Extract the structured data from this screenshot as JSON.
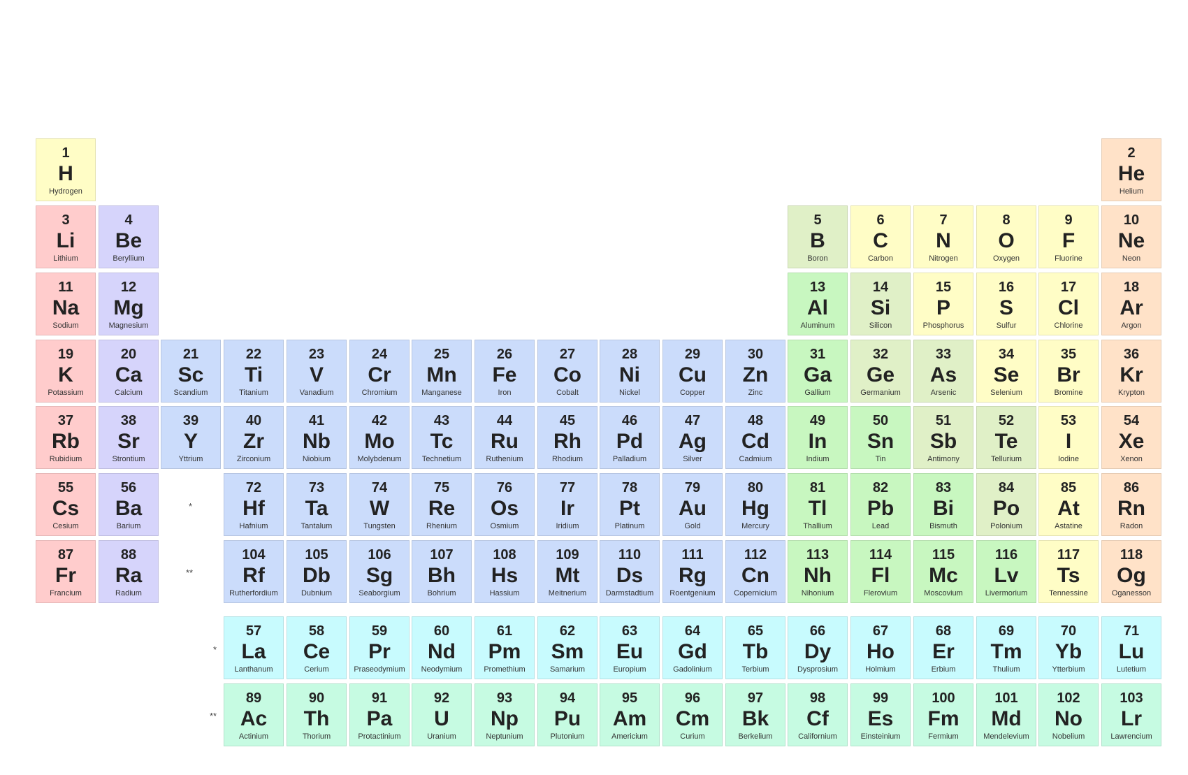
{
  "category_colors": {
    "alkali": "#ffcccc",
    "alkaline": "#d6d4fb",
    "transition": "#cbdcfb",
    "post": "#c8f7c0",
    "metalloid": "#e0f0c7",
    "nonmetal": "#fffdc6",
    "noble": "#ffe2c8",
    "lanthanide": "#c8fbfe",
    "actinide": "#c6fbe2"
  },
  "markers": {
    "lanthanide_slot": "*",
    "actinide_slot": "**",
    "lanthanide_row": "*",
    "actinide_row": "**"
  },
  "elements": [
    {
      "n": "1",
      "s": "H",
      "name": "Hydrogen",
      "row": 1,
      "col": 1,
      "cat": "nonmetal"
    },
    {
      "n": "2",
      "s": "He",
      "name": "Helium",
      "row": 1,
      "col": 18,
      "cat": "noble"
    },
    {
      "n": "3",
      "s": "Li",
      "name": "Lithium",
      "row": 2,
      "col": 1,
      "cat": "alkali"
    },
    {
      "n": "4",
      "s": "Be",
      "name": "Beryllium",
      "row": 2,
      "col": 2,
      "cat": "alkaline"
    },
    {
      "n": "5",
      "s": "B",
      "name": "Boron",
      "row": 2,
      "col": 13,
      "cat": "metalloid"
    },
    {
      "n": "6",
      "s": "C",
      "name": "Carbon",
      "row": 2,
      "col": 14,
      "cat": "nonmetal"
    },
    {
      "n": "7",
      "s": "N",
      "name": "Nitrogen",
      "row": 2,
      "col": 15,
      "cat": "nonmetal"
    },
    {
      "n": "8",
      "s": "O",
      "name": "Oxygen",
      "row": 2,
      "col": 16,
      "cat": "nonmetal"
    },
    {
      "n": "9",
      "s": "F",
      "name": "Fluorine",
      "row": 2,
      "col": 17,
      "cat": "nonmetal"
    },
    {
      "n": "10",
      "s": "Ne",
      "name": "Neon",
      "row": 2,
      "col": 18,
      "cat": "noble"
    },
    {
      "n": "11",
      "s": "Na",
      "name": "Sodium",
      "row": 3,
      "col": 1,
      "cat": "alkali"
    },
    {
      "n": "12",
      "s": "Mg",
      "name": "Magnesium",
      "row": 3,
      "col": 2,
      "cat": "alkaline"
    },
    {
      "n": "13",
      "s": "Al",
      "name": "Aluminum",
      "row": 3,
      "col": 13,
      "cat": "post"
    },
    {
      "n": "14",
      "s": "Si",
      "name": "Silicon",
      "row": 3,
      "col": 14,
      "cat": "metalloid"
    },
    {
      "n": "15",
      "s": "P",
      "name": "Phosphorus",
      "row": 3,
      "col": 15,
      "cat": "nonmetal"
    },
    {
      "n": "16",
      "s": "S",
      "name": "Sulfur",
      "row": 3,
      "col": 16,
      "cat": "nonmetal"
    },
    {
      "n": "17",
      "s": "Cl",
      "name": "Chlorine",
      "row": 3,
      "col": 17,
      "cat": "nonmetal"
    },
    {
      "n": "18",
      "s": "Ar",
      "name": "Argon",
      "row": 3,
      "col": 18,
      "cat": "noble"
    },
    {
      "n": "19",
      "s": "K",
      "name": "Potassium",
      "row": 4,
      "col": 1,
      "cat": "alkali"
    },
    {
      "n": "20",
      "s": "Ca",
      "name": "Calcium",
      "row": 4,
      "col": 2,
      "cat": "alkaline"
    },
    {
      "n": "21",
      "s": "Sc",
      "name": "Scandium",
      "row": 4,
      "col": 3,
      "cat": "transition"
    },
    {
      "n": "22",
      "s": "Ti",
      "name": "Titanium",
      "row": 4,
      "col": 4,
      "cat": "transition"
    },
    {
      "n": "23",
      "s": "V",
      "name": "Vanadium",
      "row": 4,
      "col": 5,
      "cat": "transition"
    },
    {
      "n": "24",
      "s": "Cr",
      "name": "Chromium",
      "row": 4,
      "col": 6,
      "cat": "transition"
    },
    {
      "n": "25",
      "s": "Mn",
      "name": "Manganese",
      "row": 4,
      "col": 7,
      "cat": "transition"
    },
    {
      "n": "26",
      "s": "Fe",
      "name": "Iron",
      "row": 4,
      "col": 8,
      "cat": "transition"
    },
    {
      "n": "27",
      "s": "Co",
      "name": "Cobalt",
      "row": 4,
      "col": 9,
      "cat": "transition"
    },
    {
      "n": "28",
      "s": "Ni",
      "name": "Nickel",
      "row": 4,
      "col": 10,
      "cat": "transition"
    },
    {
      "n": "29",
      "s": "Cu",
      "name": "Copper",
      "row": 4,
      "col": 11,
      "cat": "transition"
    },
    {
      "n": "30",
      "s": "Zn",
      "name": "Zinc",
      "row": 4,
      "col": 12,
      "cat": "transition"
    },
    {
      "n": "31",
      "s": "Ga",
      "name": "Gallium",
      "row": 4,
      "col": 13,
      "cat": "post"
    },
    {
      "n": "32",
      "s": "Ge",
      "name": "Germanium",
      "row": 4,
      "col": 14,
      "cat": "metalloid"
    },
    {
      "n": "33",
      "s": "As",
      "name": "Arsenic",
      "row": 4,
      "col": 15,
      "cat": "metalloid"
    },
    {
      "n": "34",
      "s": "Se",
      "name": "Selenium",
      "row": 4,
      "col": 16,
      "cat": "nonmetal"
    },
    {
      "n": "35",
      "s": "Br",
      "name": "Bromine",
      "row": 4,
      "col": 17,
      "cat": "nonmetal"
    },
    {
      "n": "36",
      "s": "Kr",
      "name": "Krypton",
      "row": 4,
      "col": 18,
      "cat": "noble"
    },
    {
      "n": "37",
      "s": "Rb",
      "name": "Rubidium",
      "row": 5,
      "col": 1,
      "cat": "alkali"
    },
    {
      "n": "38",
      "s": "Sr",
      "name": "Strontium",
      "row": 5,
      "col": 2,
      "cat": "alkaline"
    },
    {
      "n": "39",
      "s": "Y",
      "name": "Yttrium",
      "row": 5,
      "col": 3,
      "cat": "transition"
    },
    {
      "n": "40",
      "s": "Zr",
      "name": "Zirconium",
      "row": 5,
      "col": 4,
      "cat": "transition"
    },
    {
      "n": "41",
      "s": "Nb",
      "name": "Niobium",
      "row": 5,
      "col": 5,
      "cat": "transition"
    },
    {
      "n": "42",
      "s": "Mo",
      "name": "Molybdenum",
      "row": 5,
      "col": 6,
      "cat": "transition"
    },
    {
      "n": "43",
      "s": "Tc",
      "name": "Technetium",
      "row": 5,
      "col": 7,
      "cat": "transition"
    },
    {
      "n": "44",
      "s": "Ru",
      "name": "Ruthenium",
      "row": 5,
      "col": 8,
      "cat": "transition"
    },
    {
      "n": "45",
      "s": "Rh",
      "name": "Rhodium",
      "row": 5,
      "col": 9,
      "cat": "transition"
    },
    {
      "n": "46",
      "s": "Pd",
      "name": "Palladium",
      "row": 5,
      "col": 10,
      "cat": "transition"
    },
    {
      "n": "47",
      "s": "Ag",
      "name": "Silver",
      "row": 5,
      "col": 11,
      "cat": "transition"
    },
    {
      "n": "48",
      "s": "Cd",
      "name": "Cadmium",
      "row": 5,
      "col": 12,
      "cat": "transition"
    },
    {
      "n": "49",
      "s": "In",
      "name": "Indium",
      "row": 5,
      "col": 13,
      "cat": "post"
    },
    {
      "n": "50",
      "s": "Sn",
      "name": "Tin",
      "row": 5,
      "col": 14,
      "cat": "post"
    },
    {
      "n": "51",
      "s": "Sb",
      "name": "Antimony",
      "row": 5,
      "col": 15,
      "cat": "metalloid"
    },
    {
      "n": "52",
      "s": "Te",
      "name": "Tellurium",
      "row": 5,
      "col": 16,
      "cat": "metalloid"
    },
    {
      "n": "53",
      "s": "I",
      "name": "Iodine",
      "row": 5,
      "col": 17,
      "cat": "nonmetal"
    },
    {
      "n": "54",
      "s": "Xe",
      "name": "Xenon",
      "row": 5,
      "col": 18,
      "cat": "noble"
    },
    {
      "n": "55",
      "s": "Cs",
      "name": "Cesium",
      "row": 6,
      "col": 1,
      "cat": "alkali"
    },
    {
      "n": "56",
      "s": "Ba",
      "name": "Barium",
      "row": 6,
      "col": 2,
      "cat": "alkaline"
    },
    {
      "n": "72",
      "s": "Hf",
      "name": "Hafnium",
      "row": 6,
      "col": 4,
      "cat": "transition"
    },
    {
      "n": "73",
      "s": "Ta",
      "name": "Tantalum",
      "row": 6,
      "col": 5,
      "cat": "transition"
    },
    {
      "n": "74",
      "s": "W",
      "name": "Tungsten",
      "row": 6,
      "col": 6,
      "cat": "transition"
    },
    {
      "n": "75",
      "s": "Re",
      "name": "Rhenium",
      "row": 6,
      "col": 7,
      "cat": "transition"
    },
    {
      "n": "76",
      "s": "Os",
      "name": "Osmium",
      "row": 6,
      "col": 8,
      "cat": "transition"
    },
    {
      "n": "77",
      "s": "Ir",
      "name": "Iridium",
      "row": 6,
      "col": 9,
      "cat": "transition"
    },
    {
      "n": "78",
      "s": "Pt",
      "name": "Platinum",
      "row": 6,
      "col": 10,
      "cat": "transition"
    },
    {
      "n": "79",
      "s": "Au",
      "name": "Gold",
      "row": 6,
      "col": 11,
      "cat": "transition"
    },
    {
      "n": "80",
      "s": "Hg",
      "name": "Mercury",
      "row": 6,
      "col": 12,
      "cat": "transition"
    },
    {
      "n": "81",
      "s": "Tl",
      "name": "Thallium",
      "row": 6,
      "col": 13,
      "cat": "post"
    },
    {
      "n": "82",
      "s": "Pb",
      "name": "Lead",
      "row": 6,
      "col": 14,
      "cat": "post"
    },
    {
      "n": "83",
      "s": "Bi",
      "name": "Bismuth",
      "row": 6,
      "col": 15,
      "cat": "post"
    },
    {
      "n": "84",
      "s": "Po",
      "name": "Polonium",
      "row": 6,
      "col": 16,
      "cat": "metalloid"
    },
    {
      "n": "85",
      "s": "At",
      "name": "Astatine",
      "row": 6,
      "col": 17,
      "cat": "nonmetal"
    },
    {
      "n": "86",
      "s": "Rn",
      "name": "Radon",
      "row": 6,
      "col": 18,
      "cat": "noble"
    },
    {
      "n": "87",
      "s": "Fr",
      "name": "Francium",
      "row": 7,
      "col": 1,
      "cat": "alkali"
    },
    {
      "n": "88",
      "s": "Ra",
      "name": "Radium",
      "row": 7,
      "col": 2,
      "cat": "alkaline"
    },
    {
      "n": "104",
      "s": "Rf",
      "name": "Rutherfordium",
      "row": 7,
      "col": 4,
      "cat": "transition"
    },
    {
      "n": "105",
      "s": "Db",
      "name": "Dubnium",
      "row": 7,
      "col": 5,
      "cat": "transition"
    },
    {
      "n": "106",
      "s": "Sg",
      "name": "Seaborgium",
      "row": 7,
      "col": 6,
      "cat": "transition"
    },
    {
      "n": "107",
      "s": "Bh",
      "name": "Bohrium",
      "row": 7,
      "col": 7,
      "cat": "transition"
    },
    {
      "n": "108",
      "s": "Hs",
      "name": "Hassium",
      "row": 7,
      "col": 8,
      "cat": "transition"
    },
    {
      "n": "109",
      "s": "Mt",
      "name": "Meitnerium",
      "row": 7,
      "col": 9,
      "cat": "transition"
    },
    {
      "n": "110",
      "s": "Ds",
      "name": "Darmstadtium",
      "row": 7,
      "col": 10,
      "cat": "transition"
    },
    {
      "n": "111",
      "s": "Rg",
      "name": "Roentgenium",
      "row": 7,
      "col": 11,
      "cat": "transition"
    },
    {
      "n": "112",
      "s": "Cn",
      "name": "Copernicium",
      "row": 7,
      "col": 12,
      "cat": "transition"
    },
    {
      "n": "113",
      "s": "Nh",
      "name": "Nihonium",
      "row": 7,
      "col": 13,
      "cat": "post"
    },
    {
      "n": "114",
      "s": "Fl",
      "name": "Flerovium",
      "row": 7,
      "col": 14,
      "cat": "post"
    },
    {
      "n": "115",
      "s": "Mc",
      "name": "Moscovium",
      "row": 7,
      "col": 15,
      "cat": "post"
    },
    {
      "n": "116",
      "s": "Lv",
      "name": "Livermorium",
      "row": 7,
      "col": 16,
      "cat": "post"
    },
    {
      "n": "117",
      "s": "Ts",
      "name": "Tennessine",
      "row": 7,
      "col": 17,
      "cat": "nonmetal"
    },
    {
      "n": "118",
      "s": "Og",
      "name": "Oganesson",
      "row": 7,
      "col": 18,
      "cat": "noble"
    },
    {
      "n": "57",
      "s": "La",
      "name": "Lanthanum",
      "row": 8,
      "col": 4,
      "cat": "lanthanide"
    },
    {
      "n": "58",
      "s": "Ce",
      "name": "Cerium",
      "row": 8,
      "col": 5,
      "cat": "lanthanide"
    },
    {
      "n": "59",
      "s": "Pr",
      "name": "Praseodymium",
      "row": 8,
      "col": 6,
      "cat": "lanthanide"
    },
    {
      "n": "60",
      "s": "Nd",
      "name": "Neodymium",
      "row": 8,
      "col": 7,
      "cat": "lanthanide"
    },
    {
      "n": "61",
      "s": "Pm",
      "name": "Promethium",
      "row": 8,
      "col": 8,
      "cat": "lanthanide"
    },
    {
      "n": "62",
      "s": "Sm",
      "name": "Samarium",
      "row": 8,
      "col": 9,
      "cat": "lanthanide"
    },
    {
      "n": "63",
      "s": "Eu",
      "name": "Europium",
      "row": 8,
      "col": 10,
      "cat": "lanthanide"
    },
    {
      "n": "64",
      "s": "Gd",
      "name": "Gadolinium",
      "row": 8,
      "col": 11,
      "cat": "lanthanide"
    },
    {
      "n": "65",
      "s": "Tb",
      "name": "Terbium",
      "row": 8,
      "col": 12,
      "cat": "lanthanide"
    },
    {
      "n": "66",
      "s": "Dy",
      "name": "Dysprosium",
      "row": 8,
      "col": 13,
      "cat": "lanthanide"
    },
    {
      "n": "67",
      "s": "Ho",
      "name": "Holmium",
      "row": 8,
      "col": 14,
      "cat": "lanthanide"
    },
    {
      "n": "68",
      "s": "Er",
      "name": "Erbium",
      "row": 8,
      "col": 15,
      "cat": "lanthanide"
    },
    {
      "n": "69",
      "s": "Tm",
      "name": "Thulium",
      "row": 8,
      "col": 16,
      "cat": "lanthanide"
    },
    {
      "n": "70",
      "s": "Yb",
      "name": "Ytterbium",
      "row": 8,
      "col": 17,
      "cat": "lanthanide"
    },
    {
      "n": "71",
      "s": "Lu",
      "name": "Lutetium",
      "row": 8,
      "col": 18,
      "cat": "lanthanide"
    },
    {
      "n": "89",
      "s": "Ac",
      "name": "Actinium",
      "row": 9,
      "col": 4,
      "cat": "actinide"
    },
    {
      "n": "90",
      "s": "Th",
      "name": "Thorium",
      "row": 9,
      "col": 5,
      "cat": "actinide"
    },
    {
      "n": "91",
      "s": "Pa",
      "name": "Protactinium",
      "row": 9,
      "col": 6,
      "cat": "actinide"
    },
    {
      "n": "92",
      "s": "U",
      "name": "Uranium",
      "row": 9,
      "col": 7,
      "cat": "actinide"
    },
    {
      "n": "93",
      "s": "Np",
      "name": "Neptunium",
      "row": 9,
      "col": 8,
      "cat": "actinide"
    },
    {
      "n": "94",
      "s": "Pu",
      "name": "Plutonium",
      "row": 9,
      "col": 9,
      "cat": "actinide"
    },
    {
      "n": "95",
      "s": "Am",
      "name": "Americium",
      "row": 9,
      "col": 10,
      "cat": "actinide"
    },
    {
      "n": "96",
      "s": "Cm",
      "name": "Curium",
      "row": 9,
      "col": 11,
      "cat": "actinide"
    },
    {
      "n": "97",
      "s": "Bk",
      "name": "Berkelium",
      "row": 9,
      "col": 12,
      "cat": "actinide"
    },
    {
      "n": "98",
      "s": "Cf",
      "name": "Californium",
      "row": 9,
      "col": 13,
      "cat": "actinide"
    },
    {
      "n": "99",
      "s": "Es",
      "name": "Einsteinium",
      "row": 9,
      "col": 14,
      "cat": "actinide"
    },
    {
      "n": "100",
      "s": "Fm",
      "name": "Fermium",
      "row": 9,
      "col": 15,
      "cat": "actinide"
    },
    {
      "n": "101",
      "s": "Md",
      "name": "Mendelevium",
      "row": 9,
      "col": 16,
      "cat": "actinide"
    },
    {
      "n": "102",
      "s": "No",
      "name": "Nobelium",
      "row": 9,
      "col": 17,
      "cat": "actinide"
    },
    {
      "n": "103",
      "s": "Lr",
      "name": "Lawrencium",
      "row": 9,
      "col": 18,
      "cat": "actinide"
    }
  ]
}
